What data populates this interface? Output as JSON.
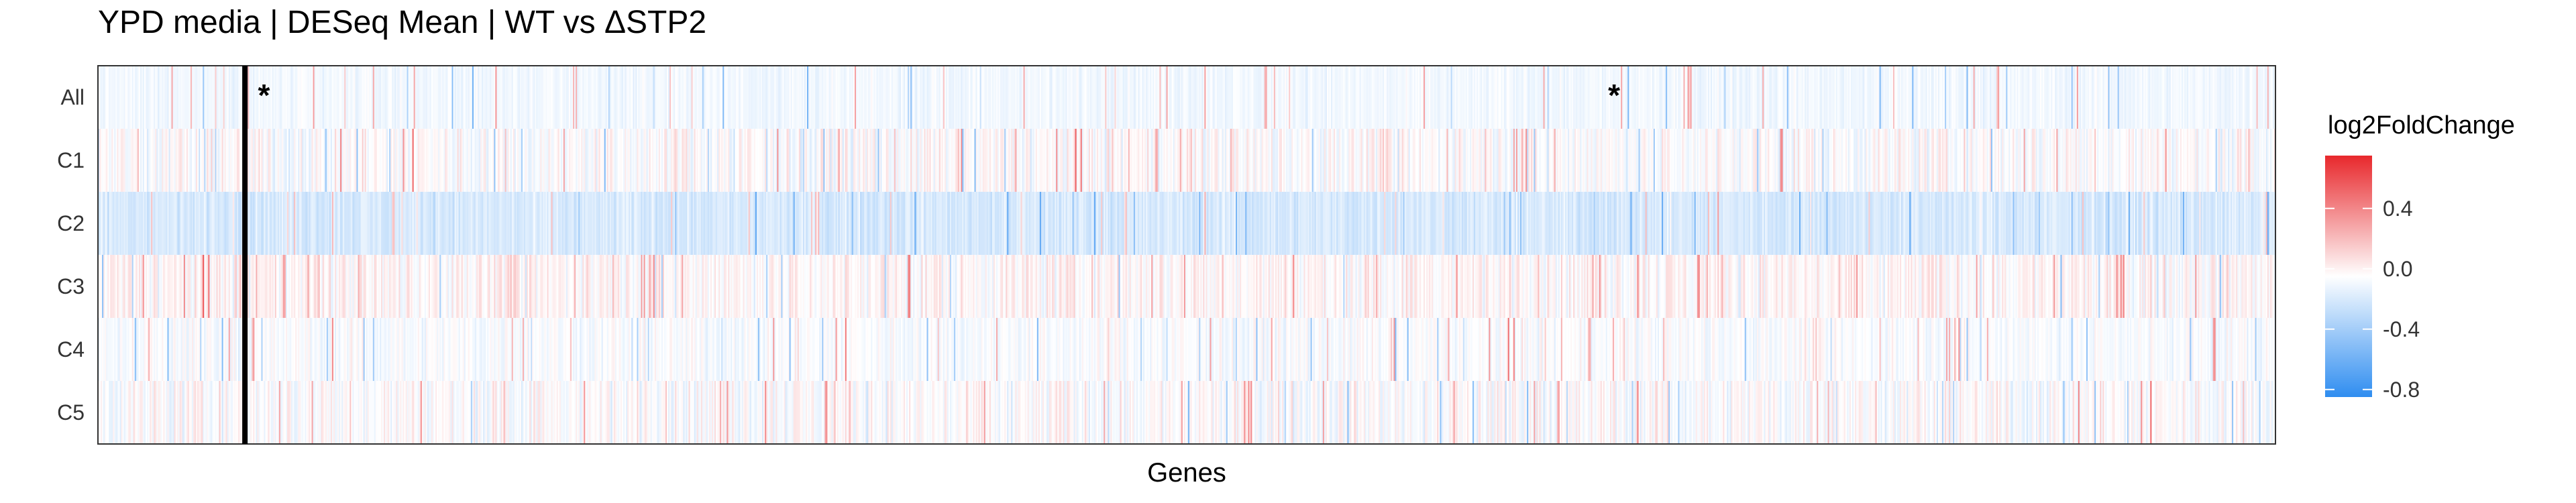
{
  "chart_data": {
    "type": "heatmap",
    "title": "YPD media | DESeq Mean | WT vs ΔSTP2",
    "xlabel": "Genes",
    "ylabel": "",
    "rows": [
      "All",
      "C1",
      "C2",
      "C3",
      "C4",
      "C5"
    ],
    "n_genes": 1600,
    "row_means": [
      -0.05,
      0.0,
      -0.15,
      0.03,
      -0.02,
      0.0
    ],
    "row_spreads": [
      0.05,
      0.12,
      0.08,
      0.12,
      0.08,
      0.12
    ],
    "value_range": [
      -0.8,
      0.8
    ],
    "separator_gene_index": 108,
    "annotations": [
      {
        "text": "*",
        "row": "All",
        "gene_index": 122
      },
      {
        "text": "*",
        "row": "All",
        "gene_index": 1114
      }
    ],
    "legend": {
      "title": "log2FoldChange",
      "ticks": [
        0.4,
        0.0,
        -0.4,
        -0.8
      ],
      "tick_labels": [
        "0.4",
        "0.0",
        "-0.4",
        "-0.8"
      ],
      "position": "right"
    },
    "colors": {
      "high": "#e8282c",
      "mid": "#ffffff",
      "low": "#2f8df0"
    }
  }
}
